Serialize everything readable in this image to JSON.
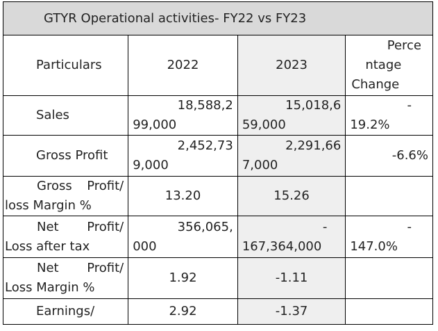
{
  "title": "GTYR Operational activities- FY22 vs FY23",
  "header": {
    "particulars": "Particulars",
    "y2022": "2022",
    "y2023": "2023",
    "pct_line1": "Perce",
    "pct_line2": "ntage",
    "pct_line3": "Change"
  },
  "rows": [
    {
      "label": "Sales",
      "v2022_a": "18,588,2",
      "v2022_b": "99,000",
      "v2023_a": "15,018,6",
      "v2023_b": "59,000",
      "pct_a": "-",
      "pct_b": "19.2%"
    },
    {
      "label": "Gross Profit",
      "v2022_a": "2,452,73",
      "v2022_b": "9,000",
      "v2023_a": "2,291,66",
      "v2023_b": "7,000",
      "pct": "-6.6%"
    },
    {
      "label_a": "Gross Profit/",
      "label_b": "loss Margin %",
      "v2022": "13.20",
      "v2023": "15.26",
      "pct": ""
    },
    {
      "label_a": "Net Profit/",
      "label_b": "Loss after tax",
      "v2022_a": "356,065,",
      "v2022_b": "000",
      "v2023_a": "-",
      "v2023_b": "167,364,000",
      "pct_a": "-",
      "pct_b": "147.0%"
    },
    {
      "label_a": "Net Profit/",
      "label_b": "Loss Margin %",
      "v2022": "1.92",
      "v2023": "-1.11",
      "pct": ""
    },
    {
      "label": "Earnings/",
      "v2022": "2.92",
      "v2023": "-1.37",
      "pct": ""
    }
  ]
}
